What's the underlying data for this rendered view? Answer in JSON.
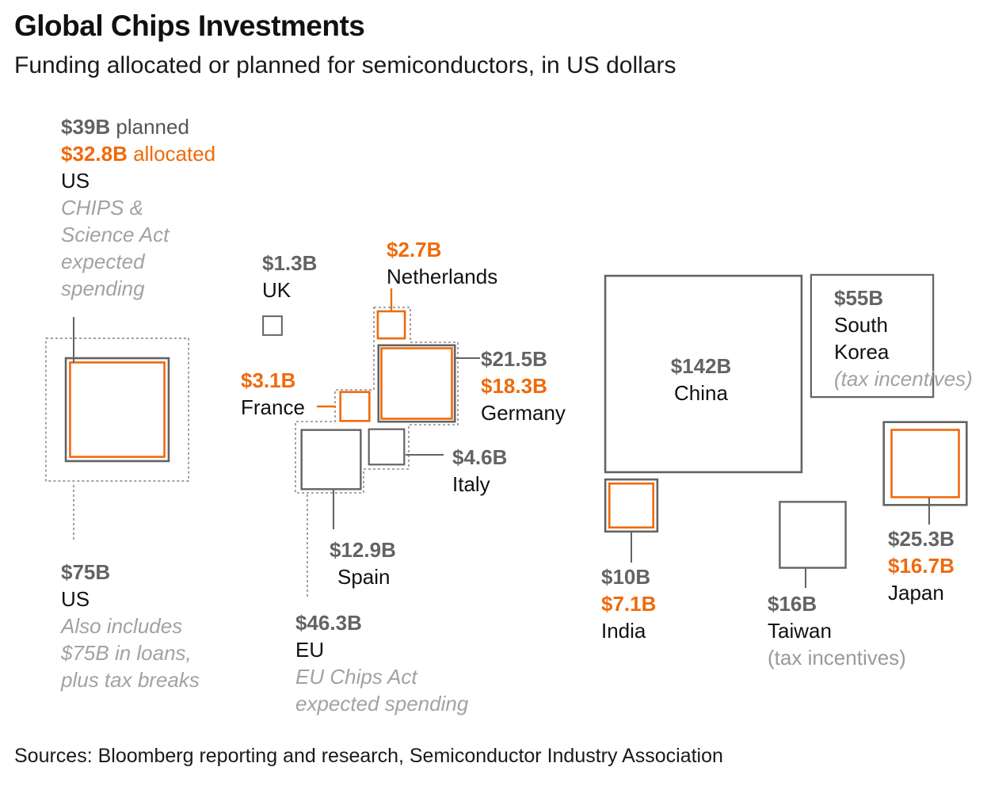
{
  "title": "Global Chips Investments",
  "subtitle": "Funding allocated or planned for semiconductors, in US dollars",
  "source": "Sources: Bloomberg reporting and research, Semiconductor Industry Association",
  "colors": {
    "planned": "#636363",
    "allocated": "#ef6a0c",
    "group": "#8c8c8c",
    "text": "#111111",
    "note": "#9a9a9a"
  },
  "chart_data": {
    "type": "proportional-squares",
    "unit": "US$ billions",
    "items": [
      {
        "id": "us-total",
        "region": "US",
        "planned": 75,
        "planned_label": "$75B",
        "note_lines": [
          "Also includes",
          "$75B in loans,",
          "plus tax breaks"
        ],
        "style": "group"
      },
      {
        "id": "us-chips",
        "region": "US",
        "planned": 39,
        "allocated": 32.8,
        "planned_label": "$39B",
        "planned_suffix": " planned",
        "allocated_label": "$32.8B",
        "allocated_suffix": " allocated",
        "note_lines": [
          "CHIPS &",
          "Science Act",
          "expected",
          "spending"
        ]
      },
      {
        "id": "uk",
        "region": "UK",
        "planned": 1.3,
        "planned_label": "$1.3B"
      },
      {
        "id": "netherlands",
        "region": "Netherlands",
        "allocated": 2.7,
        "allocated_label": "$2.7B"
      },
      {
        "id": "germany",
        "region": "Germany",
        "planned": 21.5,
        "allocated": 18.3,
        "planned_label": "$21.5B",
        "allocated_label": "$18.3B"
      },
      {
        "id": "france",
        "region": "France",
        "allocated": 3.1,
        "allocated_label": "$3.1B"
      },
      {
        "id": "italy",
        "region": "Italy",
        "planned": 4.6,
        "planned_label": "$4.6B"
      },
      {
        "id": "spain",
        "region": "Spain",
        "planned": 12.9,
        "planned_label": "$12.9B"
      },
      {
        "id": "eu",
        "region": "EU",
        "planned": 46.3,
        "planned_label": "$46.3B",
        "note_lines": [
          "EU Chips Act",
          "expected spending"
        ],
        "style": "group"
      },
      {
        "id": "china",
        "region": "China",
        "planned": 142,
        "planned_label": "$142B"
      },
      {
        "id": "south-korea",
        "region_lines": [
          "South",
          "Korea"
        ],
        "planned": 55,
        "planned_label": "$55B",
        "note_lines": [
          "(tax incentives)"
        ]
      },
      {
        "id": "india",
        "region": "India",
        "planned": 10,
        "allocated": 7.1,
        "planned_label": "$10B",
        "allocated_label": "$7.1B"
      },
      {
        "id": "taiwan",
        "region": "Taiwan",
        "planned": 16,
        "planned_label": "$16B",
        "note_lines": [
          "(tax incentives)"
        ]
      },
      {
        "id": "japan",
        "region": "Japan",
        "planned": 25.3,
        "allocated": 16.7,
        "planned_label": "$25.3B",
        "allocated_label": "$16.7B"
      }
    ]
  }
}
